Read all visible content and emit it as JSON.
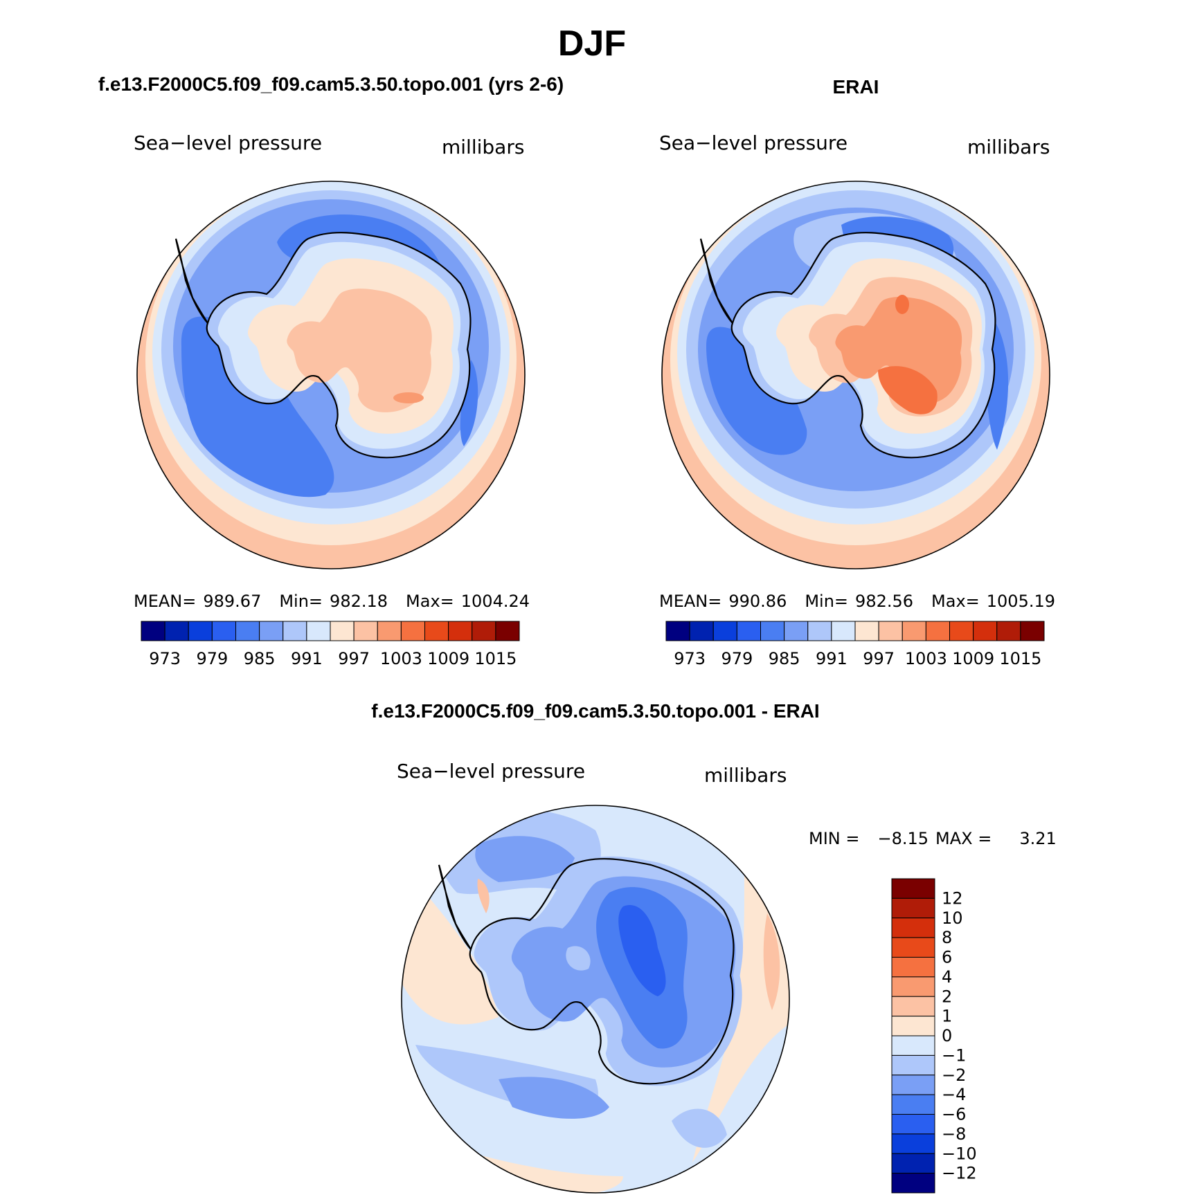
{
  "figure": {
    "title": "DJF"
  },
  "panels": [
    {
      "id": "model",
      "case_title": "f.e13.F2000C5.f09_f09.cam5.3.50.topo.001 (yrs 2-6)",
      "variable": "Sea−level pressure",
      "units": "millibars",
      "stats": {
        "mean_label": "MEAN=",
        "mean": "989.67",
        "min_label": "Min=",
        "min": "982.18",
        "max_label": "Max=",
        "max": "1004.24"
      }
    },
    {
      "id": "obs",
      "case_title": "ERAI",
      "variable": "Sea−level pressure",
      "units": "millibars",
      "stats": {
        "mean_label": "MEAN=",
        "mean": "990.86",
        "min_label": "Min=",
        "min": "982.56",
        "max_label": "Max=",
        "max": "1005.19"
      }
    },
    {
      "id": "diff",
      "case_title": "f.e13.F2000C5.f09_f09.cam5.3.50.topo.001 - ERAI",
      "variable": "Sea−level pressure",
      "units": "millibars",
      "stats": {
        "min_label": "MIN =",
        "min": "−8.15",
        "max_label": "MAX =",
        "max": "3.21"
      }
    }
  ],
  "colorbars": {
    "absolute": {
      "colors": [
        "#000080",
        "#0022b0",
        "#0a3fdc",
        "#2a5ff0",
        "#4a7ef2",
        "#7a9ff5",
        "#aec7fa",
        "#d8e8fc",
        "#fde6d2",
        "#fcc2a4",
        "#f99a70",
        "#f57140",
        "#e84a1a",
        "#d42f0c",
        "#b01c08",
        "#7a0000"
      ],
      "tick_labels": [
        "973",
        "979",
        "985",
        "991",
        "997",
        "1003",
        "1009",
        "1015"
      ]
    },
    "difference": {
      "colors": [
        "#000080",
        "#0022b0",
        "#0a3fdc",
        "#2a5ff0",
        "#4a7ef2",
        "#7a9ff5",
        "#aec7fa",
        "#d8e8fc",
        "#fde6d2",
        "#fcc2a4",
        "#f99a70",
        "#f57140",
        "#e84a1a",
        "#d42f0c",
        "#b01c08",
        "#7a0000"
      ],
      "tick_labels": [
        "12",
        "10",
        "8",
        "6",
        "4",
        "2",
        "1",
        "0",
        "−1",
        "−2",
        "−4",
        "−6",
        "−8",
        "−10",
        "−12"
      ]
    }
  },
  "palette": {
    "coast": "#000000",
    "l_m6": "#2a5ff0",
    "l_m4": "#4a7ef2",
    "l_m2": "#7a9ff5",
    "l_m1": "#aec7fa",
    "l_0": "#d8e8fc",
    "l_p0": "#fde6d2",
    "l_p1": "#fcc2a4",
    "l_p2": "#f99a70",
    "l_p3": "#f57140"
  }
}
